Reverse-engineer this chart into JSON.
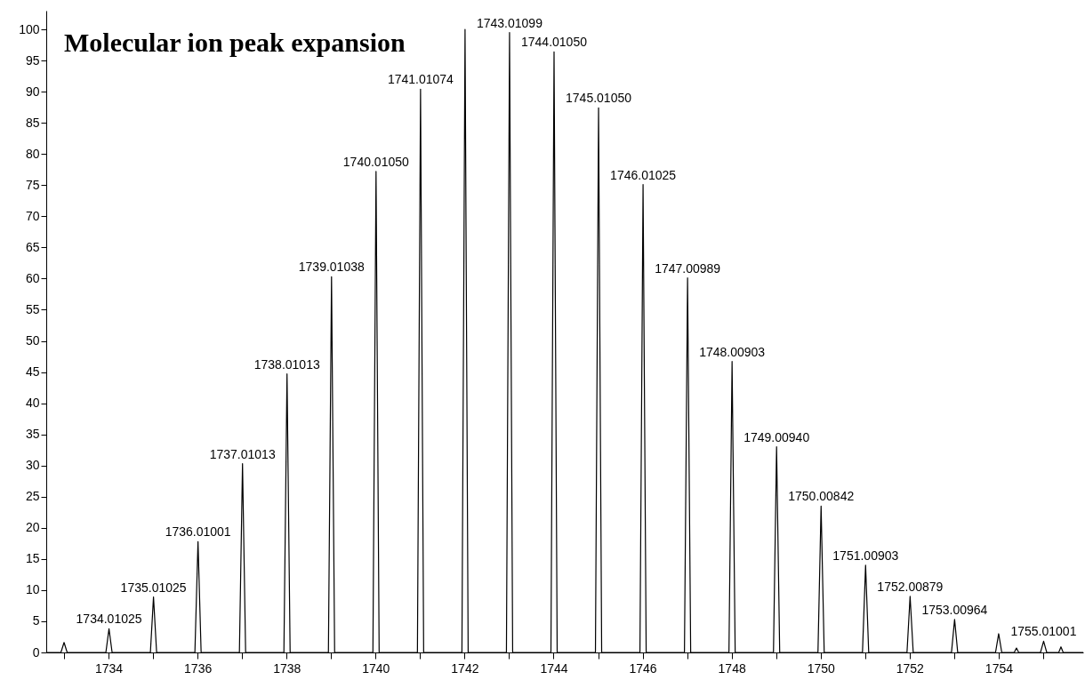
{
  "chart_data": {
    "type": "line",
    "title": "Molecular ion peak expansion",
    "xlim": [
      1732.6,
      1755.9
    ],
    "ylim": [
      0,
      103
    ],
    "xticks": [
      {
        "value": 1733,
        "label": null
      },
      1734,
      {
        "value": 1735,
        "label": null
      },
      1736,
      {
        "value": 1737,
        "label": null
      },
      1738,
      {
        "value": 1739,
        "label": null
      },
      1740,
      {
        "value": 1741,
        "label": null
      },
      1742,
      {
        "value": 1743,
        "label": null
      },
      1744,
      {
        "value": 1745,
        "label": null
      },
      1746,
      {
        "value": 1747,
        "label": null
      },
      1748,
      {
        "value": 1749,
        "label": null
      },
      1750,
      {
        "value": 1751,
        "label": null
      },
      1752,
      {
        "value": 1753,
        "label": null
      },
      1754,
      {
        "value": 1755,
        "label": null
      }
    ],
    "yticks": [
      0,
      5,
      10,
      15,
      20,
      25,
      30,
      35,
      40,
      45,
      50,
      55,
      60,
      65,
      70,
      75,
      80,
      85,
      90,
      95,
      100
    ],
    "grid": false,
    "legend": false,
    "marker": "none",
    "line_style": "solid",
    "series": [
      {
        "color": "#000000",
        "x": [
          1732.6,
          1732.93,
          1733.0,
          1733.07,
          1733.94,
          1734.01,
          1734.08,
          1734.94,
          1735.01,
          1735.08,
          1735.94,
          1736.01,
          1736.08,
          1736.94,
          1737.01,
          1737.08,
          1737.94,
          1738.01,
          1738.08,
          1738.94,
          1739.01,
          1739.08,
          1739.94,
          1740.01,
          1740.08,
          1740.94,
          1741.01,
          1741.08,
          1741.94,
          1742.01,
          1742.08,
          1742.94,
          1743.01,
          1743.08,
          1743.94,
          1744.01,
          1744.08,
          1744.94,
          1745.01,
          1745.08,
          1745.94,
          1746.01,
          1746.08,
          1746.94,
          1747.01,
          1747.08,
          1747.94,
          1748.01,
          1748.08,
          1748.94,
          1749.01,
          1749.08,
          1749.94,
          1750.01,
          1750.08,
          1750.94,
          1751.01,
          1751.08,
          1751.94,
          1752.01,
          1752.08,
          1752.94,
          1753.01,
          1753.08,
          1753.93,
          1754.0,
          1754.07,
          1754.35,
          1754.4,
          1754.45,
          1754.94,
          1755.01,
          1755.08,
          1755.35,
          1755.4,
          1755.45,
          1755.9
        ],
        "values": [
          0,
          0,
          1.6,
          0,
          0,
          3.8,
          0,
          0,
          8.9,
          0,
          0,
          17.8,
          0,
          0,
          30.3,
          0,
          0,
          44.7,
          0,
          0,
          60.3,
          0,
          0,
          77.2,
          0,
          0,
          90.4,
          0,
          0,
          100,
          0,
          0,
          99.5,
          0,
          0,
          96.4,
          0,
          0,
          87.4,
          0,
          0,
          75.1,
          0,
          0,
          60.1,
          0,
          0,
          46.7,
          0,
          0,
          33.0,
          0,
          0,
          23.5,
          0,
          0,
          14.0,
          0,
          0,
          9.0,
          0,
          0,
          5.3,
          0,
          0,
          3.0,
          0,
          0,
          0.7,
          0,
          0,
          1.8,
          0,
          0,
          0.9,
          0,
          0
        ]
      }
    ],
    "annotations": [
      {
        "text": "1734.01025",
        "x": 1734.01,
        "y": 3.8
      },
      {
        "text": "1735.01025",
        "x": 1735.01,
        "y": 8.9
      },
      {
        "text": "1736.01001",
        "x": 1736.01,
        "y": 17.8
      },
      {
        "text": "1737.01013",
        "x": 1737.01,
        "y": 30.3
      },
      {
        "text": "1738.01013",
        "x": 1738.01,
        "y": 44.7
      },
      {
        "text": "1739.01038",
        "x": 1739.01,
        "y": 60.3
      },
      {
        "text": "1740.01050",
        "x": 1740.01,
        "y": 77.2
      },
      {
        "text": "1741.01074",
        "x": 1741.01,
        "y": 90.4
      },
      {
        "text": "1743.01099",
        "x": 1743.01,
        "y": 99.5
      },
      {
        "text": "1744.01050",
        "x": 1744.01,
        "y": 96.4
      },
      {
        "text": "1745.01050",
        "x": 1745.01,
        "y": 87.4
      },
      {
        "text": "1746.01025",
        "x": 1746.01,
        "y": 75.1
      },
      {
        "text": "1747.00989",
        "x": 1747.01,
        "y": 60.1
      },
      {
        "text": "1748.00903",
        "x": 1748.01,
        "y": 46.7
      },
      {
        "text": "1749.00940",
        "x": 1749.01,
        "y": 33.0
      },
      {
        "text": "1750.00842",
        "x": 1750.01,
        "y": 23.5
      },
      {
        "text": "1751.00903",
        "x": 1751.01,
        "y": 14.0
      },
      {
        "text": "1752.00879",
        "x": 1752.01,
        "y": 9.0
      },
      {
        "text": "1753.00964",
        "x": 1753.01,
        "y": 5.3
      },
      {
        "text": "1755.01001",
        "x": 1755.01,
        "y": 1.8
      }
    ]
  }
}
